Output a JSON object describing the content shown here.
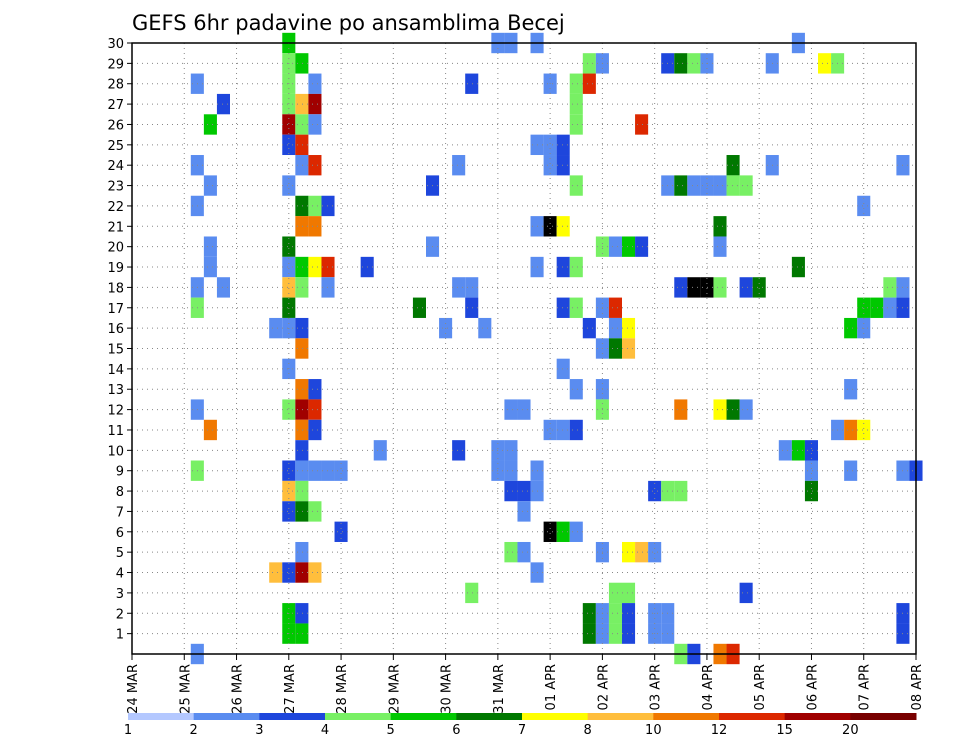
{
  "chart_data": {
    "type": "heatmap",
    "title": "GEFS 6hr padavine po ansamblima Becej",
    "x_tick_labels": [
      "24 MAR",
      "25 MAR",
      "26 MAR",
      "27 MAR",
      "28 MAR",
      "29 MAR",
      "30 MAR",
      "31 MAR",
      "01 APR",
      "02 APR",
      "03 APR",
      "04 APR",
      "05 APR",
      "06 APR",
      "07 APR",
      "08 APR"
    ],
    "y_tick_labels": [
      "1",
      "2",
      "3",
      "4",
      "5",
      "6",
      "7",
      "8",
      "9",
      "10",
      "11",
      "12",
      "13",
      "14",
      "15",
      "16",
      "17",
      "18",
      "19",
      "20",
      "21",
      "22",
      "23",
      "24",
      "25",
      "26",
      "27",
      "28",
      "29",
      "30"
    ],
    "x_range": [
      0,
      60
    ],
    "y_range": [
      0,
      30
    ],
    "grid": true,
    "colorbar": {
      "labels": [
        "1",
        "2",
        "3",
        "4",
        "5",
        "6",
        "7",
        "8",
        "10",
        "12",
        "15",
        "20"
      ],
      "colors": [
        "#b4c8ff",
        "#5a8cf0",
        "#1e46dc",
        "#78f064",
        "#00c800",
        "#007800",
        "#ffff00",
        "#ffbe3c",
        "#f07800",
        "#dc2800",
        "#a00000",
        "#780000"
      ]
    },
    "cells": [
      [
        28,
        30,
        1
      ],
      [
        29,
        30,
        1
      ],
      [
        31,
        30,
        1
      ],
      [
        51,
        30,
        1
      ],
      [
        12,
        30,
        4
      ],
      [
        12,
        29,
        3
      ],
      [
        13,
        29,
        4
      ],
      [
        35,
        29,
        3
      ],
      [
        36,
        29,
        1
      ],
      [
        41,
        29,
        2
      ],
      [
        42,
        29,
        5
      ],
      [
        43,
        29,
        3
      ],
      [
        44,
        29,
        1
      ],
      [
        49,
        29,
        1
      ],
      [
        53,
        29,
        6
      ],
      [
        54,
        29,
        3
      ],
      [
        5,
        28,
        1
      ],
      [
        12,
        28,
        3
      ],
      [
        14,
        28,
        1
      ],
      [
        26,
        28,
        2
      ],
      [
        32,
        28,
        1
      ],
      [
        34,
        28,
        3
      ],
      [
        35,
        28,
        9
      ],
      [
        7,
        27,
        2
      ],
      [
        12,
        27,
        3
      ],
      [
        13,
        27,
        7
      ],
      [
        14,
        27,
        10
      ],
      [
        34,
        27,
        3
      ],
      [
        6,
        26,
        4
      ],
      [
        12,
        26,
        10
      ],
      [
        13,
        26,
        3
      ],
      [
        14,
        26,
        1
      ],
      [
        34,
        26,
        3
      ],
      [
        39,
        26,
        9
      ],
      [
        12,
        25,
        2
      ],
      [
        13,
        25,
        9
      ],
      [
        31,
        25,
        1
      ],
      [
        32,
        25,
        1
      ],
      [
        33,
        25,
        2
      ],
      [
        5,
        24,
        1
      ],
      [
        13,
        24,
        1
      ],
      [
        14,
        24,
        9
      ],
      [
        25,
        24,
        1
      ],
      [
        32,
        24,
        1
      ],
      [
        33,
        24,
        2
      ],
      [
        46,
        24,
        5
      ],
      [
        49,
        24,
        1
      ],
      [
        59,
        24,
        1
      ],
      [
        6,
        23,
        1
      ],
      [
        12,
        23,
        1
      ],
      [
        23,
        23,
        2
      ],
      [
        34,
        23,
        3
      ],
      [
        41,
        23,
        1
      ],
      [
        42,
        23,
        5
      ],
      [
        43,
        23,
        1
      ],
      [
        44,
        23,
        1
      ],
      [
        45,
        23,
        1
      ],
      [
        46,
        23,
        3
      ],
      [
        47,
        23,
        3
      ],
      [
        5,
        22,
        1
      ],
      [
        13,
        22,
        5
      ],
      [
        14,
        22,
        3
      ],
      [
        15,
        22,
        2
      ],
      [
        56,
        22,
        1
      ],
      [
        13,
        21,
        8
      ],
      [
        14,
        21,
        8
      ],
      [
        31,
        21,
        1
      ],
      [
        32,
        21,
        12
      ],
      [
        33,
        21,
        6
      ],
      [
        45,
        21,
        5
      ],
      [
        6,
        20,
        1
      ],
      [
        12,
        20,
        5
      ],
      [
        23,
        20,
        1
      ],
      [
        36,
        20,
        3
      ],
      [
        37,
        20,
        1
      ],
      [
        38,
        20,
        4
      ],
      [
        39,
        20,
        2
      ],
      [
        45,
        20,
        1
      ],
      [
        6,
        19,
        1
      ],
      [
        12,
        19,
        1
      ],
      [
        13,
        19,
        4
      ],
      [
        14,
        19,
        6
      ],
      [
        15,
        19,
        9
      ],
      [
        18,
        19,
        2
      ],
      [
        31,
        19,
        1
      ],
      [
        33,
        19,
        2
      ],
      [
        34,
        19,
        3
      ],
      [
        51,
        19,
        5
      ],
      [
        5,
        18,
        1
      ],
      [
        7,
        18,
        1
      ],
      [
        12,
        18,
        7
      ],
      [
        13,
        18,
        3
      ],
      [
        15,
        18,
        1
      ],
      [
        25,
        18,
        1
      ],
      [
        26,
        18,
        1
      ],
      [
        42,
        18,
        2
      ],
      [
        43,
        18,
        12
      ],
      [
        44,
        18,
        12
      ],
      [
        45,
        18,
        3
      ],
      [
        47,
        18,
        2
      ],
      [
        48,
        18,
        5
      ],
      [
        58,
        18,
        3
      ],
      [
        59,
        18,
        1
      ],
      [
        5,
        17,
        3
      ],
      [
        12,
        17,
        5
      ],
      [
        22,
        17,
        5
      ],
      [
        26,
        17,
        2
      ],
      [
        33,
        17,
        2
      ],
      [
        34,
        17,
        3
      ],
      [
        36,
        17,
        1
      ],
      [
        37,
        17,
        9
      ],
      [
        56,
        17,
        4
      ],
      [
        57,
        17,
        4
      ],
      [
        58,
        17,
        1
      ],
      [
        59,
        17,
        2
      ],
      [
        11,
        16,
        1
      ],
      [
        12,
        16,
        1
      ],
      [
        13,
        16,
        2
      ],
      [
        24,
        16,
        1
      ],
      [
        27,
        16,
        1
      ],
      [
        35,
        16,
        2
      ],
      [
        37,
        16,
        1
      ],
      [
        38,
        16,
        6
      ],
      [
        55,
        16,
        4
      ],
      [
        56,
        16,
        1
      ],
      [
        13,
        15,
        8
      ],
      [
        36,
        15,
        1
      ],
      [
        37,
        15,
        5
      ],
      [
        38,
        15,
        7
      ],
      [
        12,
        14,
        1
      ],
      [
        33,
        14,
        1
      ],
      [
        13,
        13,
        8
      ],
      [
        14,
        13,
        2
      ],
      [
        34,
        13,
        1
      ],
      [
        36,
        13,
        1
      ],
      [
        55,
        13,
        1
      ],
      [
        5,
        12,
        1
      ],
      [
        12,
        12,
        3
      ],
      [
        13,
        12,
        10
      ],
      [
        14,
        12,
        9
      ],
      [
        29,
        12,
        1
      ],
      [
        30,
        12,
        1
      ],
      [
        36,
        12,
        3
      ],
      [
        42,
        12,
        8
      ],
      [
        45,
        12,
        6
      ],
      [
        46,
        12,
        5
      ],
      [
        47,
        12,
        1
      ],
      [
        6,
        11,
        8
      ],
      [
        13,
        11,
        8
      ],
      [
        14,
        11,
        2
      ],
      [
        32,
        11,
        1
      ],
      [
        33,
        11,
        1
      ],
      [
        34,
        11,
        2
      ],
      [
        54,
        11,
        1
      ],
      [
        55,
        11,
        8
      ],
      [
        56,
        11,
        6
      ],
      [
        13,
        10,
        2
      ],
      [
        19,
        10,
        1
      ],
      [
        25,
        10,
        2
      ],
      [
        28,
        10,
        1
      ],
      [
        29,
        10,
        1
      ],
      [
        50,
        10,
        1
      ],
      [
        51,
        10,
        4
      ],
      [
        52,
        10,
        2
      ],
      [
        5,
        9,
        3
      ],
      [
        12,
        9,
        2
      ],
      [
        13,
        9,
        1
      ],
      [
        14,
        9,
        1
      ],
      [
        15,
        9,
        1
      ],
      [
        16,
        9,
        1
      ],
      [
        28,
        9,
        1
      ],
      [
        29,
        9,
        1
      ],
      [
        31,
        9,
        1
      ],
      [
        52,
        9,
        1
      ],
      [
        55,
        9,
        1
      ],
      [
        59,
        9,
        1
      ],
      [
        60,
        9,
        2
      ],
      [
        12,
        8,
        7
      ],
      [
        13,
        8,
        3
      ],
      [
        29,
        8,
        2
      ],
      [
        30,
        8,
        2
      ],
      [
        31,
        8,
        1
      ],
      [
        40,
        8,
        2
      ],
      [
        41,
        8,
        3
      ],
      [
        42,
        8,
        3
      ],
      [
        52,
        8,
        5
      ],
      [
        12,
        7,
        2
      ],
      [
        13,
        7,
        5
      ],
      [
        14,
        7,
        3
      ],
      [
        30,
        7,
        1
      ],
      [
        16,
        6,
        2
      ],
      [
        32,
        6,
        12
      ],
      [
        33,
        6,
        4
      ],
      [
        34,
        6,
        1
      ],
      [
        13,
        5,
        1
      ],
      [
        29,
        5,
        3
      ],
      [
        30,
        5,
        1
      ],
      [
        36,
        5,
        1
      ],
      [
        38,
        5,
        6
      ],
      [
        39,
        5,
        7
      ],
      [
        40,
        5,
        1
      ],
      [
        11,
        4,
        7
      ],
      [
        12,
        4,
        2
      ],
      [
        13,
        4,
        10
      ],
      [
        14,
        4,
        7
      ],
      [
        31,
        4,
        1
      ],
      [
        26,
        3,
        3
      ],
      [
        37,
        3,
        3
      ],
      [
        38,
        3,
        3
      ],
      [
        47,
        3,
        2
      ],
      [
        12,
        2,
        4
      ],
      [
        13,
        2,
        2
      ],
      [
        35,
        2,
        5
      ],
      [
        36,
        2,
        1
      ],
      [
        37,
        2,
        3
      ],
      [
        38,
        2,
        2
      ],
      [
        40,
        2,
        1
      ],
      [
        41,
        2,
        1
      ],
      [
        59,
        2,
        2
      ],
      [
        12,
        1,
        4
      ],
      [
        13,
        1,
        4
      ],
      [
        35,
        1,
        5
      ],
      [
        36,
        1,
        1
      ],
      [
        37,
        1,
        3
      ],
      [
        38,
        1,
        2
      ],
      [
        40,
        1,
        1
      ],
      [
        41,
        1,
        1
      ],
      [
        59,
        1,
        2
      ],
      [
        5,
        0,
        1
      ],
      [
        42,
        0,
        3
      ],
      [
        43,
        0,
        2
      ],
      [
        45,
        0,
        8
      ],
      [
        46,
        0,
        9
      ]
    ]
  }
}
